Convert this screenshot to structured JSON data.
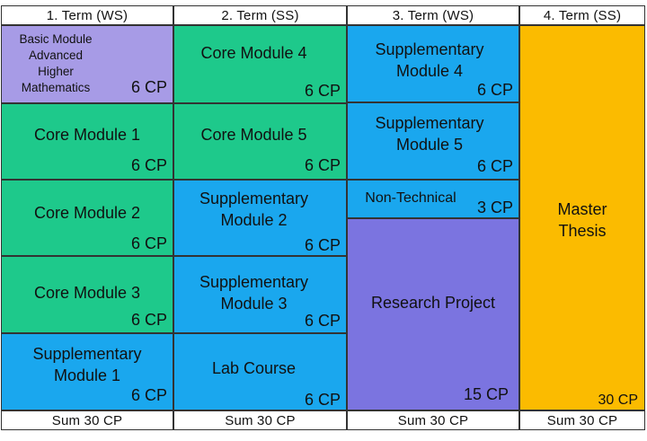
{
  "colors": {
    "core": "#1ec98b",
    "supplementary": "#1aa7ee",
    "basic": "#a79be6",
    "research": "#7b74e0",
    "thesis": "#fbbb00"
  },
  "terms": [
    {
      "header": "1. Term (WS)",
      "sum": "Sum 30 CP"
    },
    {
      "header": "2. Term (SS)",
      "sum": "Sum 30 CP"
    },
    {
      "header": "3. Term (WS)",
      "sum": "Sum 30 CP"
    },
    {
      "header": "4. Term (SS)",
      "sum": "Sum 30 CP"
    }
  ],
  "modules": {
    "basic": {
      "name": "Basic Module\nAdvanced\nHigher\nMathematics",
      "cp": "6 CP"
    },
    "core1": {
      "name": "Core Module 1",
      "cp": "6 CP"
    },
    "core2": {
      "name": "Core Module 2",
      "cp": "6 CP"
    },
    "core3": {
      "name": "Core Module 3",
      "cp": "6 CP"
    },
    "supp1": {
      "name": "Supplementary\nModule 1",
      "cp": "6 CP"
    },
    "core4": {
      "name": "Core Module 4",
      "cp": "6 CP"
    },
    "core5": {
      "name": "Core Module 5",
      "cp": "6 CP"
    },
    "supp2": {
      "name": "Supplementary\nModule 2",
      "cp": "6 CP"
    },
    "supp3": {
      "name": "Supplementary\nModule 3",
      "cp": "6 CP"
    },
    "lab": {
      "name": "Lab Course",
      "cp": "6 CP"
    },
    "supp4": {
      "name": "Supplementary\nModule 4",
      "cp": "6 CP"
    },
    "supp5": {
      "name": "Supplementary\nModule 5",
      "cp": "6 CP"
    },
    "nontech": {
      "name": "Non-Technical",
      "cp": "3 CP"
    },
    "research": {
      "name": "Research Project",
      "cp": "15 CP"
    },
    "thesis": {
      "name": "Master\nThesis",
      "cp": "30 CP"
    }
  }
}
